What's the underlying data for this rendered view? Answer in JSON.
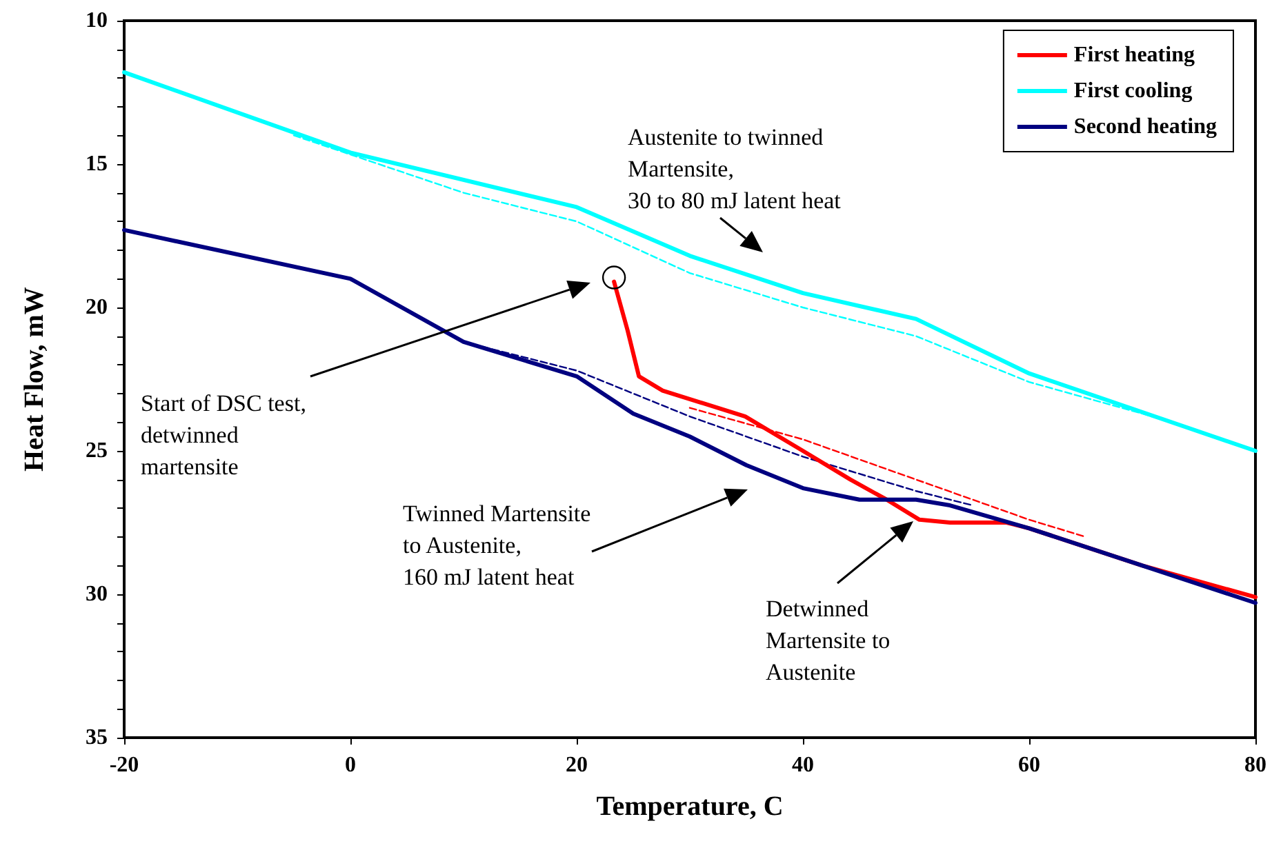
{
  "chart_data": {
    "type": "line",
    "xlabel": "Temperature, C",
    "ylabel": "Heat Flow, mW",
    "xlim": [
      -20,
      80
    ],
    "xticks": [
      -20,
      0,
      20,
      40,
      60,
      80
    ],
    "ylim": [
      35,
      10
    ],
    "yticks": [
      10,
      {
        "value": 11,
        "label": null
      },
      {
        "value": 12,
        "label": null
      },
      {
        "value": 13,
        "label": null
      },
      {
        "value": 14,
        "label": null
      },
      15,
      {
        "value": 16,
        "label": null
      },
      {
        "value": 17,
        "label": null
      },
      {
        "value": 18,
        "label": null
      },
      {
        "value": 19,
        "label": null
      },
      20,
      {
        "value": 21,
        "label": null
      },
      {
        "value": 22,
        "label": null
      },
      {
        "value": 23,
        "label": null
      },
      {
        "value": 24,
        "label": null
      },
      25,
      {
        "value": 26,
        "label": null
      },
      {
        "value": 27,
        "label": null
      },
      {
        "value": 28,
        "label": null
      },
      {
        "value": 29,
        "label": null
      },
      30,
      {
        "value": 31,
        "label": null
      },
      {
        "value": 32,
        "label": null
      },
      {
        "value": 33,
        "label": null
      },
      {
        "value": 34,
        "label": null
      },
      35
    ],
    "grid": false,
    "legend": "top right",
    "marker": "none",
    "line_style": "solid",
    "series": [
      {
        "name": "First heating",
        "color": "#ff0000",
        "x": [
          23.3,
          24.5,
          25.5,
          27.6,
          34.9,
          40,
          44.2,
          47.4,
          50.3,
          53,
          58,
          60,
          70,
          80
        ],
        "values": [
          19.1,
          20.8,
          22.4,
          22.9,
          23.8,
          25.0,
          26.0,
          26.7,
          27.4,
          27.5,
          27.5,
          27.7,
          29.0,
          30.1
        ]
      },
      {
        "name": "First cooling",
        "color": "#00ffff",
        "x": [
          -20,
          0,
          20,
          30,
          40,
          50,
          60,
          80
        ],
        "values": [
          11.8,
          14.6,
          16.5,
          18.2,
          19.5,
          20.4,
          22.3,
          25.0
        ]
      },
      {
        "name": "Second heating",
        "color": "#000080",
        "x": [
          -20,
          0,
          10,
          20,
          25,
          30,
          35,
          40,
          45,
          50,
          53,
          60,
          70,
          80
        ],
        "values": [
          17.3,
          19.0,
          21.2,
          22.4,
          23.7,
          24.5,
          25.5,
          26.3,
          26.7,
          26.7,
          26.9,
          27.7,
          29.0,
          30.3
        ]
      },
      {
        "color": "#00ffff",
        "line_style": "dashed",
        "x": [
          -5,
          10,
          20,
          30,
          40,
          50,
          60,
          70,
          75
        ],
        "values": [
          14.0,
          16.0,
          17.0,
          18.8,
          20.0,
          21.0,
          22.6,
          23.7,
          24.3
        ]
      },
      {
        "color": "#000080",
        "line_style": "dashed",
        "x": [
          10,
          20,
          30,
          40,
          50,
          55
        ],
        "values": [
          21.2,
          22.2,
          23.8,
          25.2,
          26.4,
          26.9
        ]
      },
      {
        "color": "#ff0000",
        "line_style": "dashed",
        "x": [
          30,
          40,
          50,
          60,
          65
        ],
        "values": [
          23.5,
          24.6,
          26.0,
          27.4,
          28.0
        ]
      }
    ],
    "annotations": [
      "Austenite to twinned\nMartensite,\n30 to 80 mJ latent heat",
      "Start of DSC test,\ndetwinned\nmartensite",
      "Twinned Martensite\nto Austenite,\n160 mJ latent heat",
      "Detwinned\nMartensite to\nAustenite"
    ]
  }
}
